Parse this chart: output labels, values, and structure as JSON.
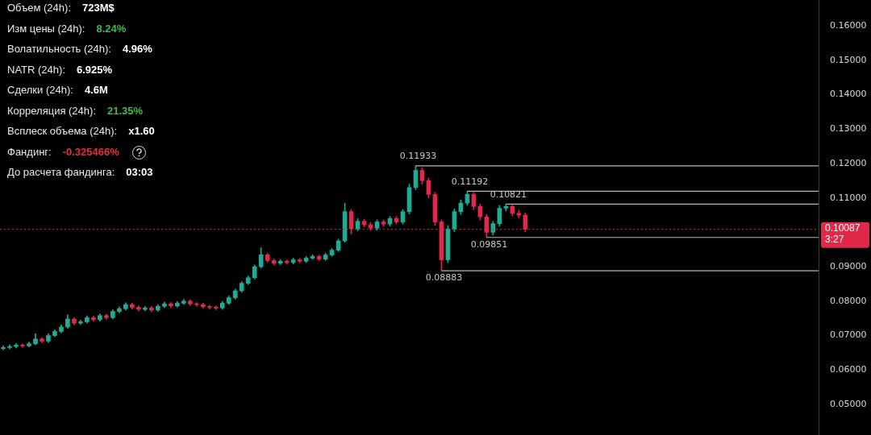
{
  "chart_data": {
    "type": "candlestick",
    "categories": [
      null,
      null,
      null,
      null,
      null,
      null,
      null,
      null,
      null,
      null,
      null,
      null,
      null,
      null,
      null,
      null,
      null,
      null,
      null,
      null,
      null,
      null,
      null,
      null,
      null,
      null,
      null,
      null,
      null,
      null,
      null,
      null,
      null,
      null,
      null,
      null,
      null,
      null,
      null,
      null,
      null,
      null,
      null,
      null,
      null,
      null,
      null,
      null,
      null,
      null,
      null,
      null,
      null,
      null,
      null,
      null,
      null,
      null,
      null,
      null,
      null,
      null,
      null,
      null,
      null,
      null,
      null,
      null,
      null,
      null,
      null,
      null,
      null,
      null,
      null,
      null,
      null,
      null,
      null,
      null,
      null,
      null,
      null,
      null,
      null,
      null,
      null,
      null,
      null,
      null,
      null,
      null,
      null,
      null,
      null,
      null,
      null,
      null,
      null,
      null,
      null,
      null,
      null,
      null,
      null,
      null,
      null,
      null,
      null,
      null,
      null,
      null,
      null,
      null,
      null,
      null,
      null,
      null,
      null,
      null,
      null,
      null,
      null,
      null,
      null,
      null,
      null
    ],
    "ohlc": [
      [
        0.0662,
        0.067,
        0.0658,
        0.0665
      ],
      [
        0.0665,
        0.0673,
        0.0661,
        0.0668
      ],
      [
        0.0668,
        0.0677,
        0.0664,
        0.0672
      ],
      [
        0.0672,
        0.0676,
        0.0666,
        0.067
      ],
      [
        0.067,
        0.0681,
        0.0667,
        0.0676
      ],
      [
        0.0676,
        0.0705,
        0.0673,
        0.069
      ],
      [
        0.069,
        0.0694,
        0.0679,
        0.0684
      ],
      [
        0.0684,
        0.0705,
        0.068,
        0.07
      ],
      [
        0.07,
        0.0717,
        0.0696,
        0.0712
      ],
      [
        0.0712,
        0.0731,
        0.0708,
        0.0725
      ],
      [
        0.0725,
        0.076,
        0.0721,
        0.0748
      ],
      [
        0.0748,
        0.0752,
        0.0731,
        0.0736
      ],
      [
        0.0736,
        0.0745,
        0.0732,
        0.074
      ],
      [
        0.074,
        0.0757,
        0.0736,
        0.0752
      ],
      [
        0.0752,
        0.0756,
        0.0741,
        0.0746
      ],
      [
        0.0746,
        0.0763,
        0.0742,
        0.0758
      ],
      [
        0.0758,
        0.0762,
        0.0747,
        0.0752
      ],
      [
        0.0752,
        0.0775,
        0.0748,
        0.077
      ],
      [
        0.077,
        0.0783,
        0.0766,
        0.0778
      ],
      [
        0.0778,
        0.0795,
        0.0774,
        0.079
      ],
      [
        0.079,
        0.0794,
        0.0777,
        0.0782
      ],
      [
        0.0782,
        0.0786,
        0.0771,
        0.0776
      ],
      [
        0.0776,
        0.0785,
        0.0772,
        0.078
      ],
      [
        0.078,
        0.0784,
        0.0769,
        0.0774
      ],
      [
        0.0774,
        0.079,
        0.077,
        0.0785
      ],
      [
        0.0785,
        0.0797,
        0.0781,
        0.0792
      ],
      [
        0.0792,
        0.0796,
        0.0781,
        0.0786
      ],
      [
        0.0786,
        0.0799,
        0.0782,
        0.0794
      ],
      [
        0.0794,
        0.0805,
        0.079,
        0.08
      ],
      [
        0.08,
        0.0804,
        0.0787,
        0.0792
      ],
      [
        0.0792,
        0.0796,
        0.0785,
        0.079
      ],
      [
        0.079,
        0.0794,
        0.0779,
        0.0784
      ],
      [
        0.0784,
        0.0788,
        0.0777,
        0.0782
      ],
      [
        0.0782,
        0.0786,
        0.0775,
        0.078
      ],
      [
        0.078,
        0.0799,
        0.0776,
        0.0794
      ],
      [
        0.0794,
        0.0815,
        0.079,
        0.081
      ],
      [
        0.081,
        0.0835,
        0.0806,
        0.083
      ],
      [
        0.083,
        0.0857,
        0.0826,
        0.0852
      ],
      [
        0.0852,
        0.0873,
        0.0848,
        0.0868
      ],
      [
        0.0868,
        0.0905,
        0.0864,
        0.09
      ],
      [
        0.09,
        0.0955,
        0.0896,
        0.0935
      ],
      [
        0.0935,
        0.0939,
        0.0913,
        0.0918
      ],
      [
        0.0918,
        0.0922,
        0.0905,
        0.091
      ],
      [
        0.091,
        0.0921,
        0.0906,
        0.0916
      ],
      [
        0.0916,
        0.092,
        0.0907,
        0.0912
      ],
      [
        0.0912,
        0.0925,
        0.0908,
        0.092
      ],
      [
        0.092,
        0.0924,
        0.0911,
        0.0916
      ],
      [
        0.0916,
        0.093,
        0.0912,
        0.0925
      ],
      [
        0.0925,
        0.0935,
        0.0921,
        0.093
      ],
      [
        0.093,
        0.0934,
        0.0917,
        0.0922
      ],
      [
        0.0922,
        0.0939,
        0.0918,
        0.0934
      ],
      [
        0.0934,
        0.0953,
        0.093,
        0.0948
      ],
      [
        0.0948,
        0.098,
        0.0944,
        0.0975
      ],
      [
        0.0975,
        0.1085,
        0.0971,
        0.106
      ],
      [
        0.106,
        0.1066,
        0.0995,
        0.101
      ],
      [
        0.101,
        0.104,
        0.1004,
        0.1032
      ],
      [
        0.1032,
        0.1038,
        0.1016,
        0.1022
      ],
      [
        0.1022,
        0.1028,
        0.1005,
        0.1012
      ],
      [
        0.1012,
        0.1036,
        0.1006,
        0.103
      ],
      [
        0.103,
        0.1036,
        0.1018,
        0.1024
      ],
      [
        0.1024,
        0.1046,
        0.1018,
        0.104
      ],
      [
        0.104,
        0.1046,
        0.1024,
        0.103
      ],
      [
        0.103,
        0.1066,
        0.1024,
        0.106
      ],
      [
        0.106,
        0.114,
        0.1054,
        0.113
      ],
      [
        0.113,
        0.11933,
        0.1124,
        0.118
      ],
      [
        0.118,
        0.1188,
        0.114,
        0.115
      ],
      [
        0.115,
        0.1158,
        0.11,
        0.111
      ],
      [
        0.111,
        0.1116,
        0.102,
        0.103
      ],
      [
        0.103,
        0.1036,
        0.08883,
        0.092
      ],
      [
        0.092,
        0.102,
        0.0912,
        0.101
      ],
      [
        0.101,
        0.1068,
        0.1002,
        0.106
      ],
      [
        0.106,
        0.1094,
        0.1052,
        0.1085
      ],
      [
        0.1085,
        0.11192,
        0.1078,
        0.111
      ],
      [
        0.111,
        0.1116,
        0.1066,
        0.1075
      ],
      [
        0.1075,
        0.1082,
        0.1036,
        0.1045
      ],
      [
        0.1045,
        0.1052,
        0.09851,
        0.1
      ],
      [
        0.1,
        0.1032,
        0.0992,
        0.1025
      ],
      [
        0.1025,
        0.1078,
        0.1018,
        0.107
      ],
      [
        0.107,
        0.10821,
        0.1062,
        0.1075
      ],
      [
        0.1075,
        0.108,
        0.1048,
        0.1055
      ],
      [
        0.1055,
        0.1064,
        0.1042,
        0.105
      ],
      [
        0.105,
        0.1056,
        0.1002,
        0.10087
      ],
      null,
      null,
      null,
      null,
      null,
      null,
      null,
      null,
      null,
      null,
      null,
      null,
      null,
      null,
      null,
      null,
      null,
      null,
      null,
      null,
      null,
      null,
      null,
      null,
      null,
      null,
      null,
      null,
      null,
      null,
      null,
      null,
      null,
      null,
      null,
      null,
      null,
      null,
      null,
      null,
      null,
      null,
      null,
      null,
      null
    ],
    "ylim": [
      0.0411,
      0.1675
    ],
    "yticks": [
      {
        "value": 0.05,
        "label": "0.05000"
      },
      {
        "value": 0.06,
        "label": "0.06000"
      },
      {
        "value": 0.07,
        "label": "0.07000"
      },
      {
        "value": 0.08,
        "label": "0.08000"
      },
      {
        "value": 0.09,
        "label": "0.09000"
      },
      {
        "value": 0.11,
        "label": "0.11000"
      },
      {
        "value": 0.12,
        "label": "0.12000"
      },
      {
        "value": 0.13,
        "label": "0.13000"
      },
      {
        "value": 0.14,
        "label": "0.14000"
      },
      {
        "value": 0.15,
        "label": "0.15000"
      },
      {
        "value": 0.16,
        "label": "0.16000"
      }
    ],
    "tick_labels": "y",
    "legend": false,
    "ref_lines": [
      {
        "axis": "y",
        "value": 0.10087,
        "label": "0.10087\n3:27",
        "color": "#e0294a",
        "line_style": "dotted"
      }
    ],
    "annotations": [
      {
        "text": "0.11933",
        "y": 0.11933
      },
      {
        "text": "0.11192",
        "y": 0.11192
      },
      {
        "text": "0.10821",
        "y": 0.10821
      },
      {
        "text": "0.09851",
        "y": 0.09851
      },
      {
        "text": "0.08883",
        "y": 0.08883
      },
      "Объем (24h):",
      "723M$",
      "Изм цены  (24h):",
      "8.24%",
      "Волатильность  (24h):",
      "4.96%",
      "NATR (24h):",
      "6.925%",
      "Сделки (24h):",
      "4.6M",
      "Корреляция (24h):",
      "21.35%",
      "Всплеск объема (24h):",
      "x1.60",
      "Фандинг:",
      "-0.325466%",
      "До расчета фандинга:",
      "03:03"
    ]
  }
}
